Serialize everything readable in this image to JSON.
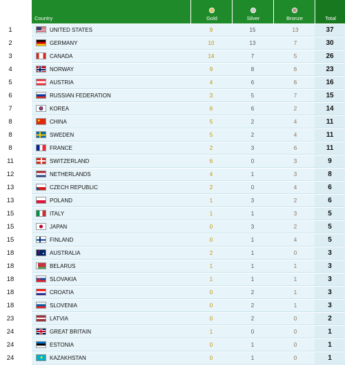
{
  "header": {
    "country": "Country",
    "gold": "Gold",
    "silver": "Silver",
    "bronze": "Bronze",
    "total": "Total",
    "colors": {
      "bar": "#1f8a2a",
      "gold_dot": "#d9c060",
      "silver_dot": "#c8c8c8",
      "bronze_dot": "#b09a88"
    }
  },
  "rows": [
    {
      "rank": "1",
      "country": "UNITED STATES",
      "flag": "us-flag",
      "gold": "9",
      "silver": "15",
      "bronze": "13",
      "total": "37"
    },
    {
      "rank": "2",
      "country": "GERMANY",
      "flag": "germany-flag",
      "gold": "10",
      "silver": "13",
      "bronze": "7",
      "total": "30"
    },
    {
      "rank": "3",
      "country": "CANADA",
      "flag": "canada-flag",
      "gold": "14",
      "silver": "7",
      "bronze": "5",
      "total": "26"
    },
    {
      "rank": "4",
      "country": "NORWAY",
      "flag": "norway-flag",
      "gold": "9",
      "silver": "8",
      "bronze": "6",
      "total": "23"
    },
    {
      "rank": "5",
      "country": "AUSTRIA",
      "flag": "austria-flag",
      "gold": "4",
      "silver": "6",
      "bronze": "6",
      "total": "16"
    },
    {
      "rank": "6",
      "country": "RUSSIAN FEDERATION",
      "flag": "russia-flag",
      "gold": "3",
      "silver": "5",
      "bronze": "7",
      "total": "15"
    },
    {
      "rank": "7",
      "country": "KOREA",
      "flag": "korea-flag",
      "gold": "6",
      "silver": "6",
      "bronze": "2",
      "total": "14"
    },
    {
      "rank": "8",
      "country": "CHINA",
      "flag": "china-flag",
      "gold": "5",
      "silver": "2",
      "bronze": "4",
      "total": "11"
    },
    {
      "rank": "8",
      "country": "SWEDEN",
      "flag": "sweden-flag",
      "gold": "5",
      "silver": "2",
      "bronze": "4",
      "total": "11"
    },
    {
      "rank": "8",
      "country": "FRANCE",
      "flag": "france-flag",
      "gold": "2",
      "silver": "3",
      "bronze": "6",
      "total": "11"
    },
    {
      "rank": "11",
      "country": "SWITZERLAND",
      "flag": "switzerland-flag",
      "gold": "6",
      "silver": "0",
      "bronze": "3",
      "total": "9"
    },
    {
      "rank": "12",
      "country": "NETHERLANDS",
      "flag": "netherlands-flag",
      "gold": "4",
      "silver": "1",
      "bronze": "3",
      "total": "8"
    },
    {
      "rank": "13",
      "country": "CZECH REPUBLIC",
      "flag": "czech-flag",
      "gold": "2",
      "silver": "0",
      "bronze": "4",
      "total": "6"
    },
    {
      "rank": "13",
      "country": "POLAND",
      "flag": "poland-flag",
      "gold": "1",
      "silver": "3",
      "bronze": "2",
      "total": "6"
    },
    {
      "rank": "15",
      "country": "ITALY",
      "flag": "italy-flag",
      "gold": "1",
      "silver": "1",
      "bronze": "3",
      "total": "5"
    },
    {
      "rank": "15",
      "country": "JAPAN",
      "flag": "japan-flag",
      "gold": "0",
      "silver": "3",
      "bronze": "2",
      "total": "5"
    },
    {
      "rank": "15",
      "country": "FINLAND",
      "flag": "finland-flag",
      "gold": "0",
      "silver": "1",
      "bronze": "4",
      "total": "5"
    },
    {
      "rank": "18",
      "country": "AUSTRALIA",
      "flag": "australia-flag",
      "gold": "2",
      "silver": "1",
      "bronze": "0",
      "total": "3"
    },
    {
      "rank": "18",
      "country": "BELARUS",
      "flag": "belarus-flag",
      "gold": "1",
      "silver": "1",
      "bronze": "1",
      "total": "3"
    },
    {
      "rank": "18",
      "country": "SLOVAKIA",
      "flag": "slovakia-flag",
      "gold": "1",
      "silver": "1",
      "bronze": "1",
      "total": "3"
    },
    {
      "rank": "18",
      "country": "CROATIA",
      "flag": "croatia-flag",
      "gold": "0",
      "silver": "2",
      "bronze": "1",
      "total": "3"
    },
    {
      "rank": "18",
      "country": "SLOVENIA",
      "flag": "slovenia-flag",
      "gold": "0",
      "silver": "2",
      "bronze": "1",
      "total": "3"
    },
    {
      "rank": "23",
      "country": "LATVIA",
      "flag": "latvia-flag",
      "gold": "0",
      "silver": "2",
      "bronze": "0",
      "total": "2"
    },
    {
      "rank": "24",
      "country": "GREAT BRITAIN",
      "flag": "great-britain-flag",
      "gold": "1",
      "silver": "0",
      "bronze": "0",
      "total": "1"
    },
    {
      "rank": "24",
      "country": "ESTONIA",
      "flag": "estonia-flag",
      "gold": "0",
      "silver": "1",
      "bronze": "0",
      "total": "1"
    },
    {
      "rank": "24",
      "country": "KAZAKHSTAN",
      "flag": "kazakhstan-flag",
      "gold": "0",
      "silver": "1",
      "bronze": "0",
      "total": "1"
    }
  ]
}
